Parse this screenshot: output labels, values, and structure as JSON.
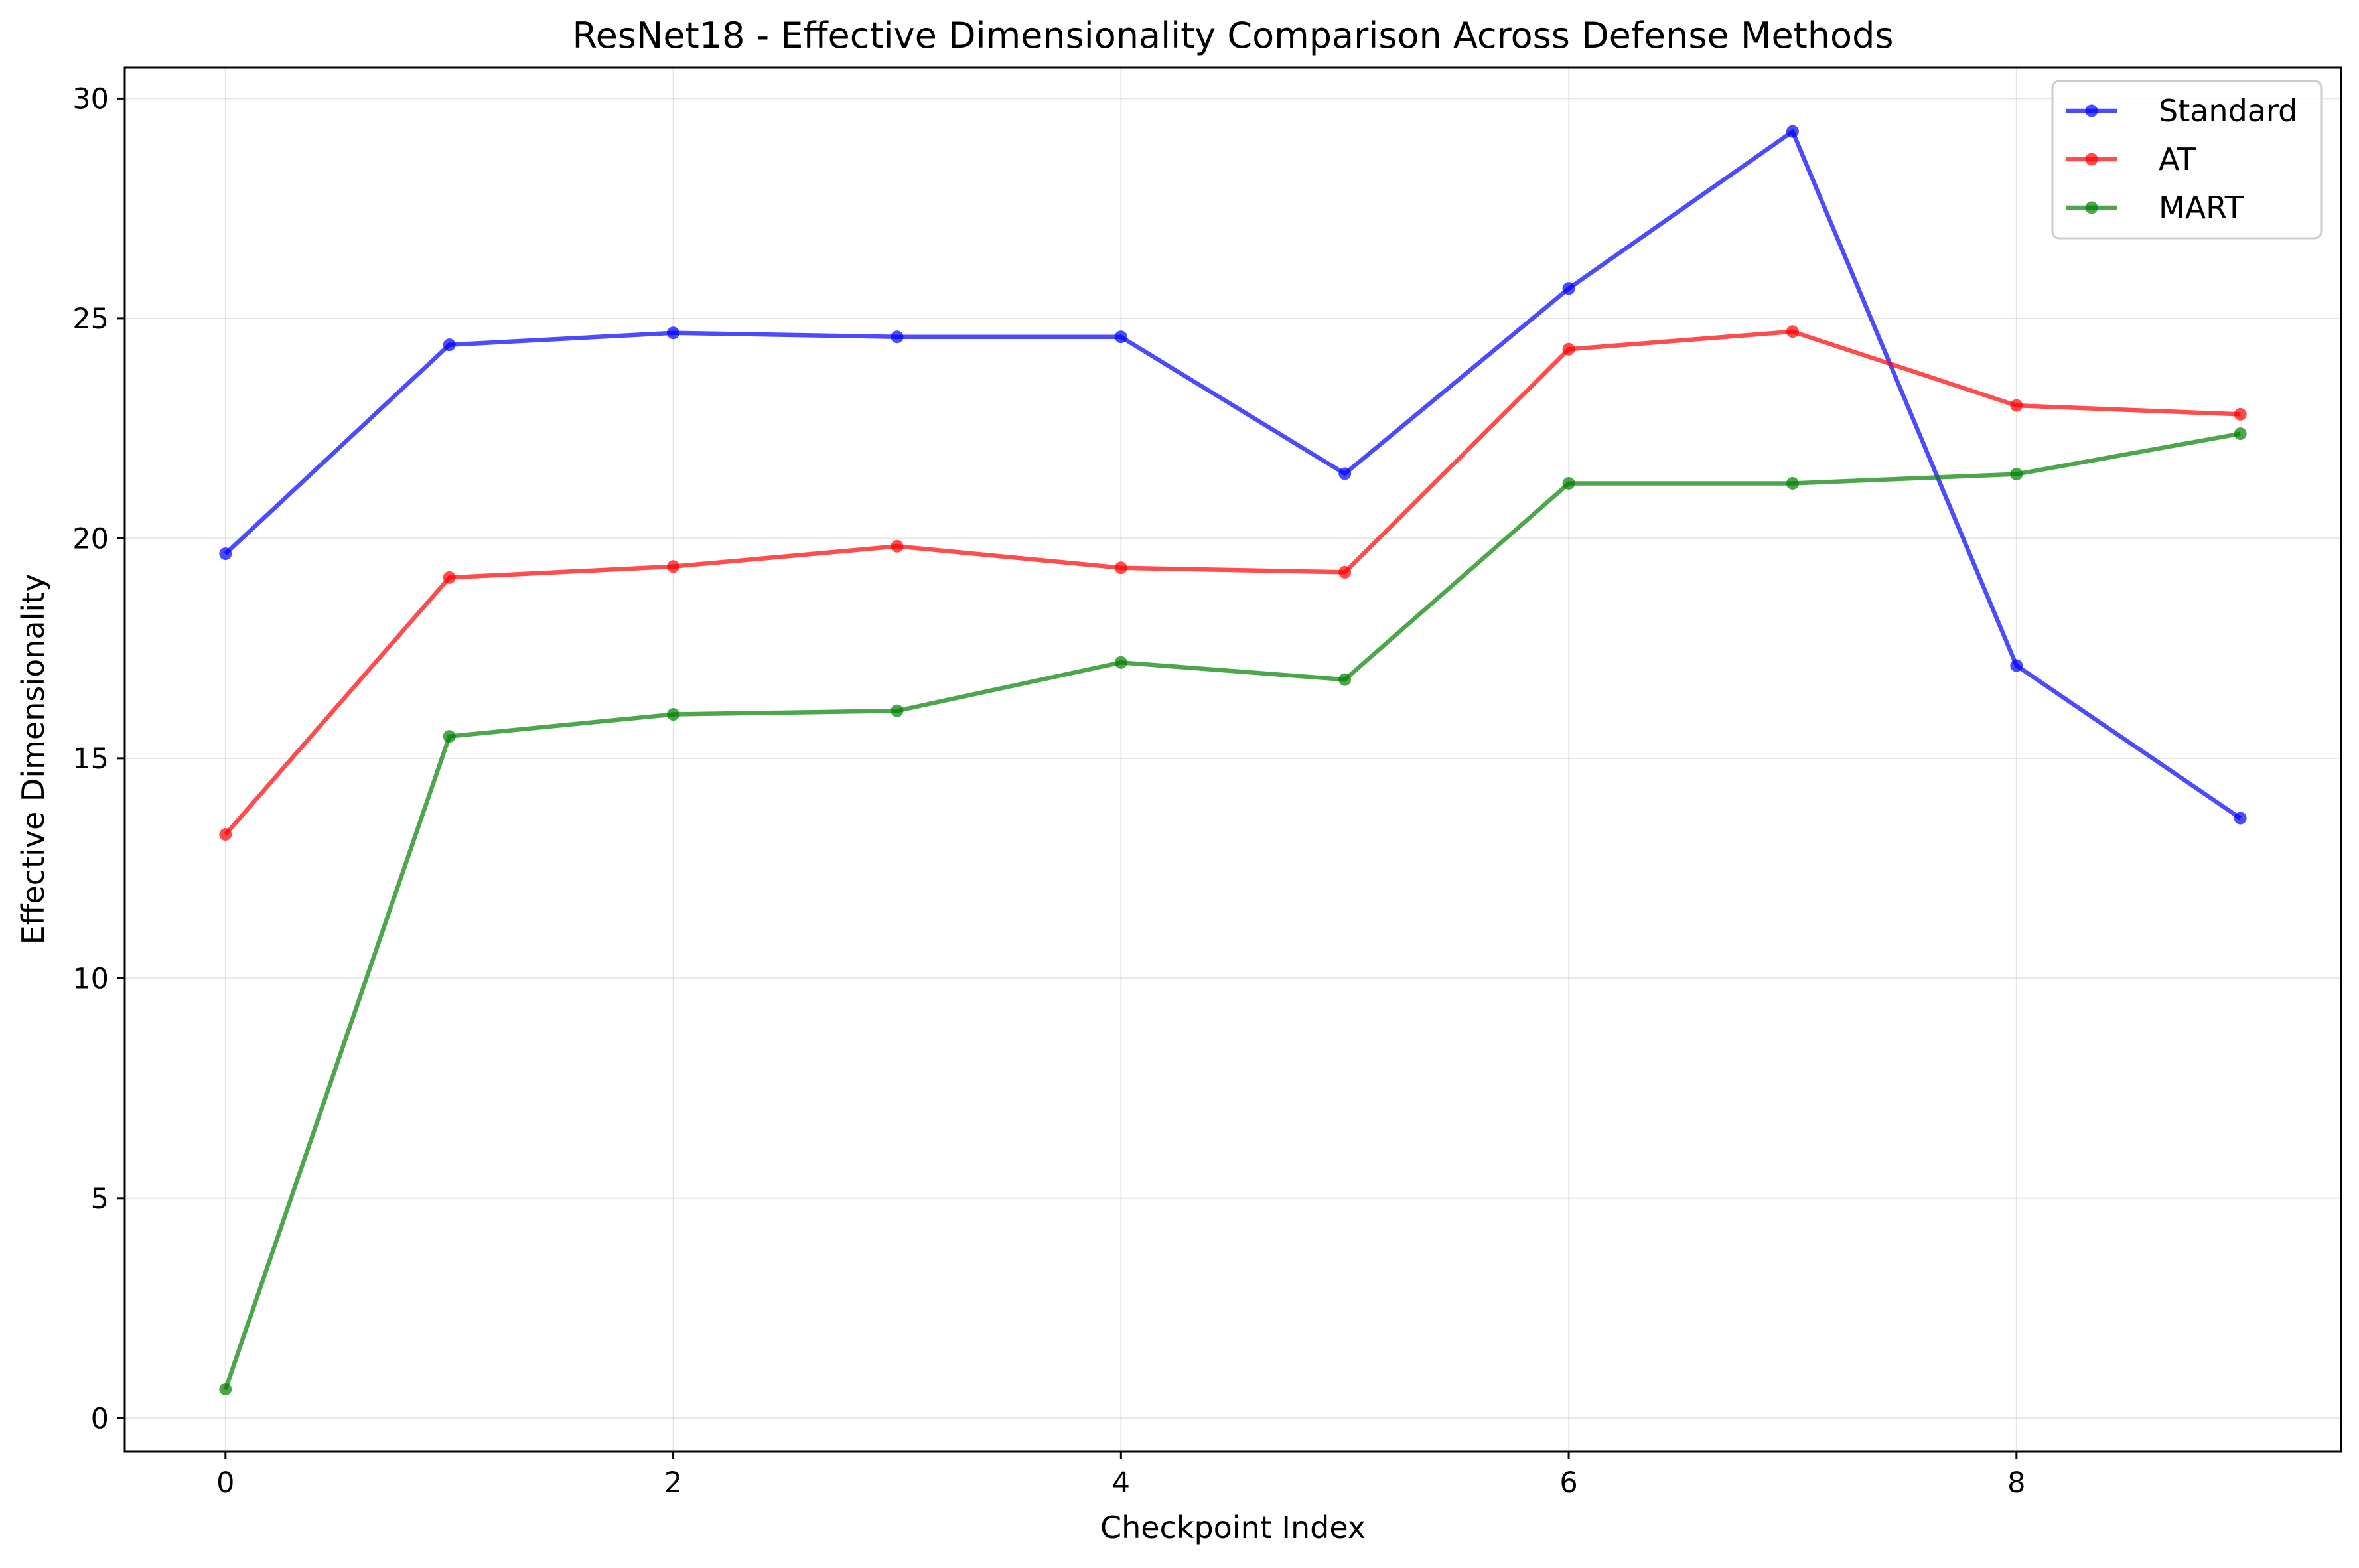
{
  "chart_data": {
    "type": "line",
    "title": "ResNet18 - Effective Dimensionality Comparison Across Defense Methods",
    "xlabel": "Checkpoint Index",
    "ylabel": "Effective Dimensionality",
    "x": [
      0,
      1,
      2,
      3,
      4,
      5,
      6,
      7,
      8,
      9
    ],
    "xlim": [
      -0.45,
      9.45
    ],
    "ylim": [
      -0.75,
      30.7
    ],
    "xticks": [
      0,
      2,
      4,
      6,
      8
    ],
    "yticks": [
      0,
      5,
      10,
      15,
      20,
      25,
      30
    ],
    "grid": true,
    "legend_position": "top-right",
    "series": [
      {
        "name": "Standard",
        "color": "#0000ff",
        "values": [
          19.65,
          24.4,
          24.67,
          24.58,
          24.58,
          21.47,
          25.68,
          29.25,
          17.11,
          13.64
        ]
      },
      {
        "name": "AT",
        "color": "#ff0000",
        "values": [
          13.27,
          19.11,
          19.36,
          19.82,
          19.33,
          19.23,
          24.3,
          24.7,
          23.02,
          22.82
        ]
      },
      {
        "name": "MART",
        "color": "#008000",
        "values": [
          0.66,
          15.5,
          16.0,
          16.08,
          17.18,
          16.79,
          21.25,
          21.25,
          21.46,
          22.38
        ]
      }
    ]
  }
}
